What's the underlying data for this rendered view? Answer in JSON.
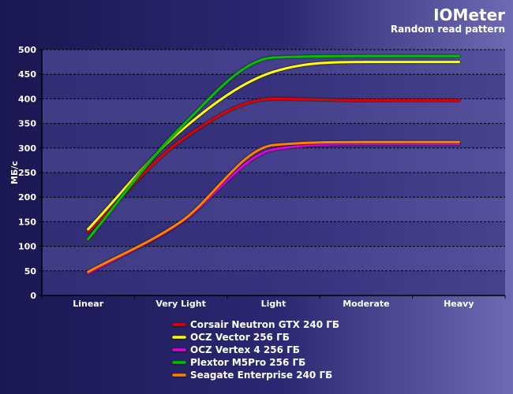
{
  "chart_data": {
    "type": "line",
    "title": "IOMeter",
    "subtitle": "Random read pattern",
    "xlabel": "",
    "ylabel": "МБ/с",
    "categories": [
      "Linear",
      "Very Light",
      "Light",
      "Moderate",
      "Heavy"
    ],
    "ylim": [
      0,
      500
    ],
    "yticks": [
      0,
      50,
      100,
      150,
      200,
      250,
      300,
      350,
      400,
      450,
      500
    ],
    "grid": true,
    "legend_position": "bottom",
    "series": [
      {
        "name": "Corsair Neutron GTX 240 ГБ",
        "color": "#e00000",
        "values": [
          130,
          315,
          400,
          397,
          397
        ]
      },
      {
        "name": "OCZ Vector 256 ГБ",
        "color": "#ffff00",
        "values": [
          135,
          335,
          455,
          475,
          475
        ]
      },
      {
        "name": "OCZ Vertex 4 256 ГБ",
        "color": "#e000e0",
        "values": [
          45,
          148,
          297,
          308,
          308
        ]
      },
      {
        "name": "Plextor M5Pro 256 ГБ",
        "color": "#00c000",
        "values": [
          115,
          342,
          484,
          487,
          487
        ]
      },
      {
        "name": "Seagate Enterprise 240 ГБ",
        "color": "#ff8000",
        "values": [
          48,
          150,
          306,
          312,
          312
        ]
      }
    ]
  }
}
